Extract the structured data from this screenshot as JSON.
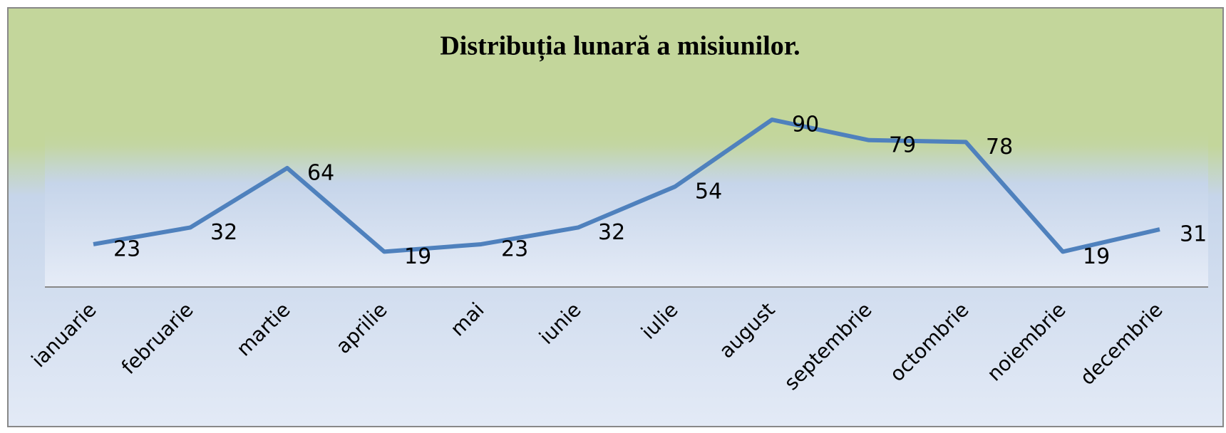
{
  "chart_data": {
    "type": "line",
    "title": "Distribuția lunară a misiunilor.",
    "categories": [
      "ianuarie",
      "februarie",
      "martie",
      "aprilie",
      "mai",
      "iunie",
      "iulie",
      "august",
      "septembrie",
      "octombrie",
      "noiembrie",
      "decembrie"
    ],
    "values": [
      23,
      32,
      64,
      19,
      23,
      32,
      54,
      90,
      79,
      78,
      19,
      31
    ],
    "color": "#4f81bd",
    "ylim": [
      0,
      100
    ]
  }
}
